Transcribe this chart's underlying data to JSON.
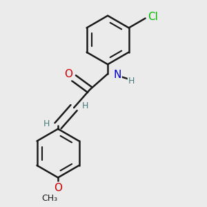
{
  "background_color": "#ebebeb",
  "bond_color": "#1a1a1a",
  "bond_width": 1.8,
  "atom_colors": {
    "H": "#4a7a7a",
    "N": "#0000cc",
    "O": "#cc0000",
    "Cl": "#00bb00"
  },
  "font_size_large": 11,
  "font_size_small": 9,
  "fig_size": [
    3.0,
    3.0
  ],
  "dpi": 100,
  "xlim": [
    0.1,
    0.9
  ],
  "ylim": [
    0.02,
    0.98
  ]
}
